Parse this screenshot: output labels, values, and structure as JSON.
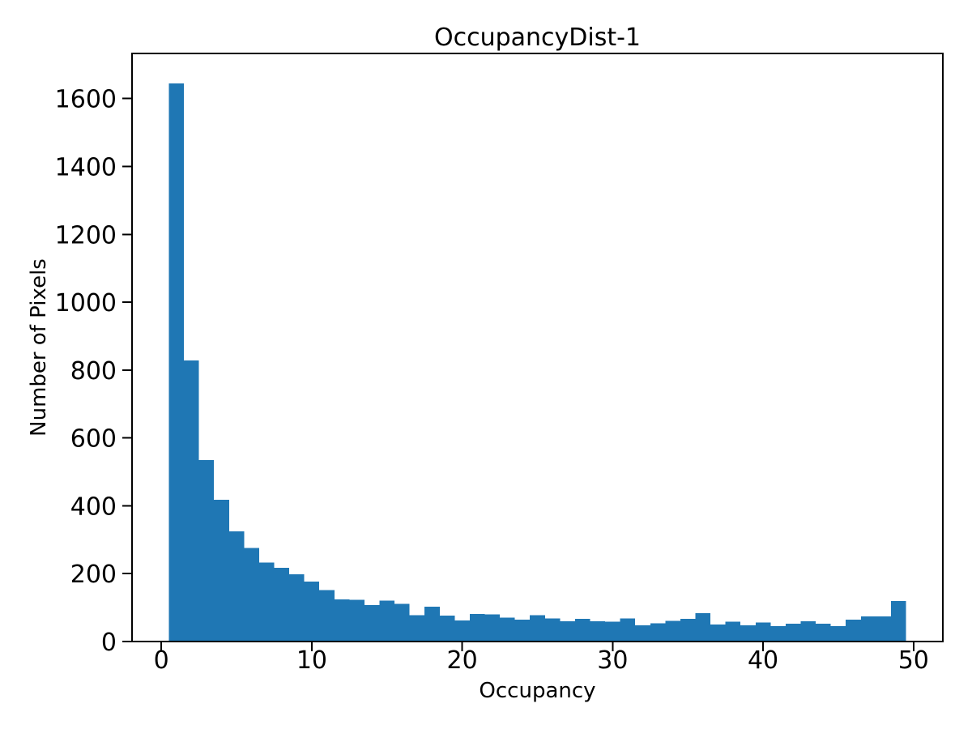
{
  "chart_data": {
    "type": "bar",
    "subtype": "histogram",
    "title": "OccupancyDist-1",
    "xlabel": "Occupancy",
    "ylabel": "Number of Pixels",
    "bar_color": "#1f77b4",
    "background_color": "#ffffff",
    "grid": false,
    "legend": "none",
    "bins": {
      "start": 0.5,
      "width": 1,
      "count": 49
    },
    "values": [
      1645,
      828,
      535,
      418,
      325,
      276,
      233,
      217,
      198,
      177,
      151,
      124,
      123,
      108,
      121,
      111,
      78,
      103,
      76,
      62,
      81,
      80,
      70,
      65,
      77,
      68,
      60,
      67,
      60,
      58,
      68,
      48,
      54,
      61,
      67,
      83,
      50,
      58,
      48,
      56,
      45,
      52,
      60,
      52,
      45,
      65,
      74,
      74,
      119
    ],
    "xlim": [
      -1.95,
      51.95
    ],
    "ylim": [
      0,
      1733
    ],
    "xticks": [
      0,
      10,
      20,
      30,
      40,
      50
    ],
    "yticks": [
      0,
      200,
      400,
      600,
      800,
      1000,
      1200,
      1400,
      1600
    ]
  }
}
